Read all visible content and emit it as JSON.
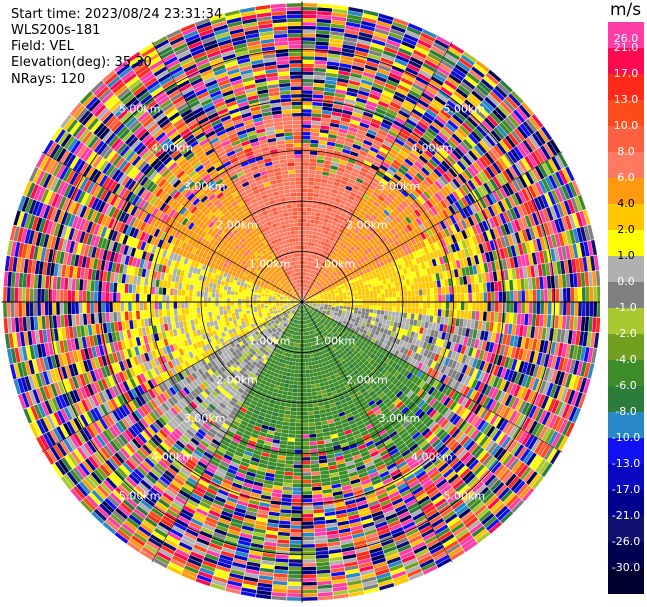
{
  "header": {
    "start_time": "Start time: 2023/08/24 23:31:34",
    "instrument": "WLS200s-181",
    "field": "Field: VEL",
    "elevation": "Elevation(deg): 35.30",
    "nrays": "NRays: 120"
  },
  "colorbar": {
    "unit": "m/s",
    "labels": [
      "26.0",
      "21.0",
      "17.0",
      "13.0",
      "10.0",
      "8.0",
      "6.0",
      "4.0",
      "2.0",
      "1.0",
      "0.0",
      "-1.0",
      "-2.0",
      "-4.0",
      "-6.0",
      "-8.0",
      "-10.0",
      "-13.0",
      "-17.0",
      "-21.0",
      "-26.0",
      "-30.0"
    ],
    "colors": [
      "#ff3ca8",
      "#ff0a50",
      "#ff2a1a",
      "#ff4a1a",
      "#ff6040",
      "#ff7a60",
      "#ff9a10",
      "#ffc800",
      "#ffff00",
      "#b0b0b0",
      "#808080",
      "#a8c830",
      "#70a020",
      "#3c8c28",
      "#2c7c3c",
      "#2888c8",
      "#1010f0",
      "#0808c0",
      "#000090",
      "#101070",
      "#000050",
      "#000030"
    ]
  },
  "chart_data": {
    "type": "heatmap",
    "projection": "polar PPI",
    "field": "VEL",
    "unit": "m/s",
    "nrays": 120,
    "elevation_deg": 35.3,
    "range_rings_km": [
      1.0,
      2.0,
      3.0,
      4.0,
      5.0
    ],
    "range_ring_labels": [
      "1.00km",
      "2.00km",
      "3.00km",
      "4.00km",
      "5.00km"
    ],
    "grid": true,
    "vmin": -30.0,
    "vmax": 26.0,
    "sectors": [
      {
        "azimuth_from": 210,
        "azimuth_to": 240,
        "value": 0.0
      },
      {
        "azimuth_from": 240,
        "azimuth_to": 290,
        "value": 1.5
      },
      {
        "azimuth_from": 290,
        "azimuth_to": 330,
        "value": 5.0
      },
      {
        "azimuth_from": 330,
        "azimuth_to": 30,
        "value": 7.5
      },
      {
        "azimuth_from": 30,
        "azimuth_to": 65,
        "value": 5.5
      },
      {
        "azimuth_from": 65,
        "azimuth_to": 95,
        "value": 2.5
      },
      {
        "azimuth_from": 95,
        "azimuth_to": 120,
        "value": 0.0
      },
      {
        "azimuth_from": 120,
        "azimuth_to": 210,
        "value": -5.0
      }
    ],
    "clean_range_km": 3.0,
    "noise_range_km": [
      3.0,
      5.9
    ]
  }
}
